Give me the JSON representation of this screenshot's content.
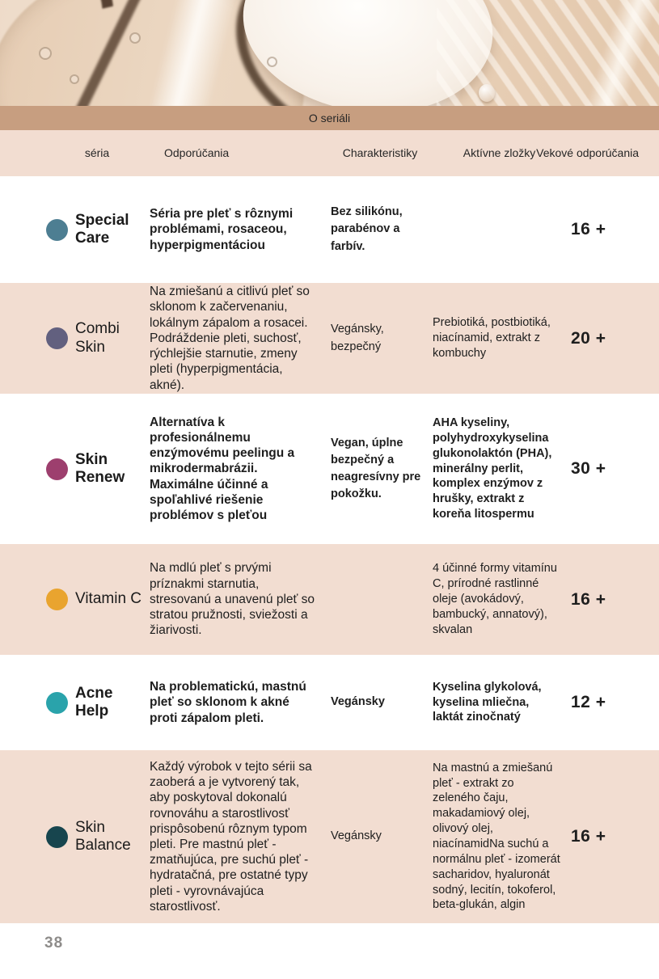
{
  "banner": {
    "title": "O seriáli"
  },
  "table": {
    "headers": {
      "series": "séria",
      "recommendations": "Odporúčania",
      "characteristics": "Charakteristiky",
      "active_ingredients": "Aktívne zložky",
      "age": "Vekové odporúčania"
    },
    "rows": [
      {
        "name": "Special Care",
        "dot_color": "#4d7e92",
        "recommendations": "Séria pre pleť s rôznymi problémami, rosaceou, hyperpigmentáciou",
        "characteristics": "Bez silikónu, parabénov a farbív.",
        "active_ingredients": "",
        "age": "16 +"
      },
      {
        "name": "Combi Skin",
        "dot_color": "#62607f",
        "recommendations": "Na zmiešanú a citlivú pleť so sklonom k začervenaniu, lokálnym zápalom a rosacei. Podráždenie pleti, suchosť, rýchlejšie starnutie, zmeny pleti (hyperpigmentácia, akné).",
        "characteristics": "Vegánsky, bezpečný",
        "active_ingredients": "Prebiotiká, postbiotiká, niacínamid, extrakt z kombuchy",
        "age": "20 +"
      },
      {
        "name": "Skin Renew",
        "dot_color": "#9d3f6e",
        "recommendations": "Alternatíva k profesionálnemu enzýmovému peelingu a mikrodermabrázii. Maximálne účinné a spoľahlivé riešenie problémov s pleťou",
        "characteristics": "Vegan, úplne bezpečný a neagresívny pre pokožku.",
        "active_ingredients": "AHA kyseliny, polyhydroxykyselina glukonolaktón (PHA), minerálny perlit, komplex enzýmov z hrušky, extrakt z koreňa litospermu",
        "age": "30 +"
      },
      {
        "name": "Vitamin C",
        "dot_color": "#e9a42f",
        "recommendations": "Na mdlú pleť s prvými príznakmi starnutia, stresovanú a unavenú pleť so stratou pružnosti, sviežosti a žiarivosti.",
        "characteristics": "",
        "active_ingredients": "4 účinné formy vitamínu C, prírodné rastlinné oleje (avokádový, bambucký, annatový), skvalan",
        "age": "16 +"
      },
      {
        "name": "Acne Help",
        "dot_color": "#2aa3ab",
        "recommendations": "Na problematickú, mastnú pleť so sklonom k akné proti zápalom pleti.",
        "characteristics": "Vegánsky",
        "active_ingredients": "Kyselina glykolová, kyselina mliečna, laktát zinočnatý",
        "age": "12 +"
      },
      {
        "name": "Skin Balance",
        "dot_color": "#17454e",
        "recommendations": "Každý výrobok v tejto sérii sa zaoberá a je vytvorený tak, aby poskytoval dokonalú rovnováhu a starostlivosť prispôsobenú rôznym typom pleti. Pre mastnú pleť - zmatňujúca, pre suchú pleť - hydratačná, pre ostatné typy pleti - vyrovnávajúca starostlivosť.",
        "characteristics": "Vegánsky",
        "active_ingredients": "Na mastnú a zmiešanú pleť - extrakt zo zeleného čaju, makadamiový olej, olivový olej, niacínamidNa suchú a normálnu pleť - izomerát sacharidov, hyaluronát sodný, lecitín, tokoferol, beta-glukán, algin",
        "age": "16 +"
      }
    ]
  },
  "footer": {
    "page_number": "38"
  },
  "colors": {
    "section_bar": "#c79e80",
    "row_pink": "#f2ddd1",
    "row_white": "#ffffff"
  }
}
